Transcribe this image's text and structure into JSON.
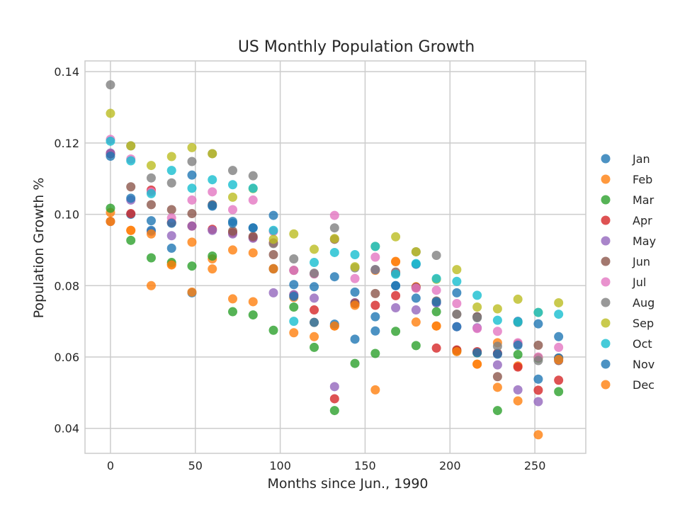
{
  "chart_data": {
    "type": "scatter",
    "title": "US Monthly Population Growth",
    "xlabel": "Months since Jun., 1990",
    "ylabel": "Population Growth %",
    "xlim": [
      -15,
      280
    ],
    "ylim": [
      0.033,
      0.143
    ],
    "xticks": [
      0,
      50,
      100,
      150,
      200,
      250
    ],
    "yticks": [
      0.04,
      0.06,
      0.08,
      0.1,
      0.12,
      0.14
    ],
    "xtick_labels": [
      "0",
      "50",
      "100",
      "150",
      "200",
      "250"
    ],
    "ytick_labels": [
      "0.04",
      "0.06",
      "0.08",
      "0.10",
      "0.12",
      "0.14"
    ],
    "grid": true,
    "legend_position": "right",
    "x": [
      0,
      12,
      24,
      36,
      48,
      60,
      72,
      84,
      96,
      108,
      120,
      132,
      144,
      156,
      168,
      180,
      192,
      204,
      216,
      228,
      240,
      252,
      264
    ],
    "series": [
      {
        "name": "Jan",
        "color": "#1f77b4",
        "values": [
          0.117,
          0.1,
          0.0982,
          0.0905,
          0.111,
          0.1023,
          0.098,
          0.0962,
          0.0997,
          0.0803,
          0.0797,
          0.0825,
          0.0782,
          0.0713,
          0.08,
          0.086,
          0.0752,
          0.078,
          0.0712,
          0.061,
          0.07,
          0.0538,
          0.0657
        ]
      },
      {
        "name": "Feb",
        "color": "#ff7f0e",
        "values": [
          0.1005,
          0.0955,
          0.08,
          0.086,
          0.0922,
          0.0875,
          0.0763,
          0.0755,
          0.0848,
          0.0767,
          0.0697,
          0.0687,
          0.075,
          0.0843,
          0.0867,
          0.0797,
          0.0687,
          0.0617,
          0.058,
          0.064,
          0.0575,
          0.0598,
          0.0597
        ]
      },
      {
        "name": "Mar",
        "color": "#2ca02c",
        "values": [
          0.1017,
          0.0927,
          0.0878,
          0.0865,
          0.0855,
          0.0883,
          0.0727,
          0.0718,
          0.0675,
          0.074,
          0.0627,
          0.045,
          0.0582,
          0.061,
          0.0672,
          0.0632,
          0.0727,
          0.0618,
          0.0612,
          0.045,
          0.0607,
          0.0597,
          0.0503
        ]
      },
      {
        "name": "Apr",
        "color": "#d62728",
        "values": [
          0.117,
          0.1002,
          0.1068,
          0.0977,
          0.0967,
          0.0958,
          0.0948,
          0.0935,
          0.092,
          0.0773,
          0.0732,
          0.0483,
          0.0752,
          0.0745,
          0.0772,
          0.0795,
          0.0625,
          0.062,
          0.0615,
          0.061,
          0.0572,
          0.0507,
          0.0535
        ]
      },
      {
        "name": "May",
        "color": "#9467bd",
        "values": [
          0.1172,
          0.104,
          0.0952,
          0.094,
          0.0967,
          0.0955,
          0.0945,
          0.0933,
          0.078,
          0.0775,
          0.0765,
          0.0517,
          0.0752,
          0.0845,
          0.0738,
          0.0732,
          0.0752,
          0.0685,
          0.0682,
          0.0578,
          0.0508,
          0.0475,
          0.0597
        ]
      },
      {
        "name": "Jun",
        "color": "#8c564b",
        "values": [
          0.098,
          0.1077,
          0.1027,
          0.1013,
          0.1002,
          0.1027,
          0.0953,
          0.0938,
          0.0887,
          0.0843,
          0.0833,
          0.093,
          0.075,
          0.0778,
          0.0838,
          0.0795,
          0.0757,
          0.072,
          0.0713,
          0.0545,
          0.0637,
          0.0633,
          0.059
        ]
      },
      {
        "name": "Jul",
        "color": "#e377c2",
        "values": [
          0.121,
          0.1155,
          0.1063,
          0.099,
          0.104,
          0.1063,
          0.1013,
          0.104,
          0.0952,
          0.0843,
          0.0833,
          0.0997,
          0.082,
          0.088,
          0.0835,
          0.0793,
          0.0787,
          0.075,
          0.068,
          0.0672,
          0.064,
          0.06,
          0.0627
        ]
      },
      {
        "name": "Aug",
        "color": "#7f7f7f",
        "values": [
          0.1363,
          0.1192,
          0.1102,
          0.1088,
          0.1148,
          0.117,
          0.1123,
          0.1108,
          0.0918,
          0.0875,
          0.0835,
          0.0962,
          0.085,
          0.0845,
          0.0835,
          0.0895,
          0.0885,
          0.072,
          0.071,
          0.063,
          0.0697,
          0.059,
          0.0597
        ]
      },
      {
        "name": "Sep",
        "color": "#bcbd22",
        "values": [
          0.1283,
          0.1192,
          0.1137,
          0.1162,
          0.1187,
          0.117,
          0.1048,
          0.1072,
          0.093,
          0.0945,
          0.0902,
          0.0932,
          0.0853,
          0.091,
          0.0937,
          0.0895,
          0.0818,
          0.0845,
          0.074,
          0.0735,
          0.0762,
          0.0725,
          0.0752
        ]
      },
      {
        "name": "Oct",
        "color": "#17becf",
        "values": [
          0.1205,
          0.115,
          0.1058,
          0.1123,
          0.1073,
          0.1097,
          0.1083,
          0.1073,
          0.0955,
          0.07,
          0.0865,
          0.0893,
          0.0887,
          0.091,
          0.0832,
          0.0862,
          0.082,
          0.0812,
          0.0773,
          0.0703,
          0.0698,
          0.0725,
          0.072
        ]
      },
      {
        "name": "Nov",
        "color": "#1f77b4",
        "values": [
          0.1163,
          0.1045,
          0.0955,
          0.0975,
          0.078,
          0.1025,
          0.0975,
          0.0962,
          0.0847,
          0.077,
          0.0697,
          0.0692,
          0.065,
          0.0673,
          0.08,
          0.0765,
          0.0755,
          0.0685,
          0.0612,
          0.0608,
          0.0633,
          0.0693,
          0.0597
        ]
      },
      {
        "name": "Dec",
        "color": "#ff7f0e",
        "values": [
          0.098,
          0.0955,
          0.0945,
          0.0858,
          0.0782,
          0.0847,
          0.09,
          0.0892,
          0.0847,
          0.0668,
          0.0657,
          0.0687,
          0.0745,
          0.0508,
          0.0868,
          0.0698,
          0.0687,
          0.0615,
          0.058,
          0.0515,
          0.0477,
          0.0382,
          0.0593
        ]
      }
    ]
  }
}
